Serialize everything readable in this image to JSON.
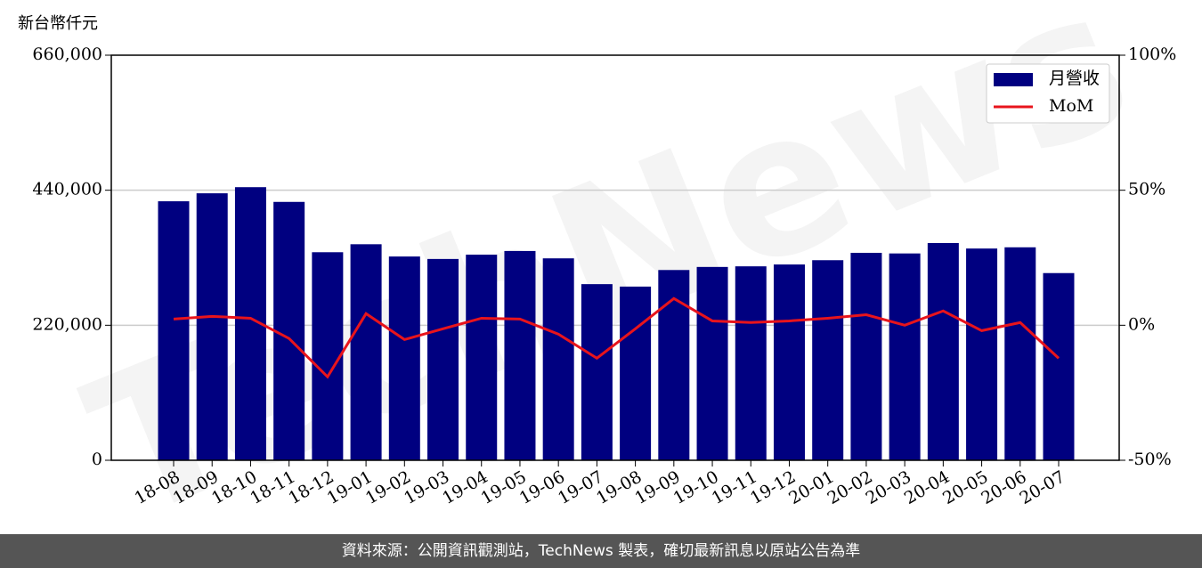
{
  "chart_data": {
    "type": "bar",
    "y_axis_title": "新台幣仟元",
    "watermark": "TechNews",
    "footer": "資料來源：公開資訊觀測站，TechNews 製表，確切最新訊息以原站公告為準",
    "categories": [
      "18-08",
      "18-09",
      "18-10",
      "18-11",
      "18-12",
      "19-01",
      "19-02",
      "19-03",
      "19-04",
      "19-05",
      "19-06",
      "19-07",
      "19-08",
      "19-09",
      "19-10",
      "19-11",
      "19-12",
      "20-01",
      "20-02",
      "20-03",
      "20-04",
      "20-05",
      "20-06",
      "20-07"
    ],
    "series": [
      {
        "name": "月營收",
        "color": "#000080",
        "type": "bar",
        "values": [
          422000,
          435000,
          445000,
          421000,
          339000,
          352000,
          332000,
          328000,
          335000,
          341000,
          329000,
          287000,
          283000,
          310000,
          315000,
          316000,
          319000,
          326000,
          338000,
          337000,
          354000,
          345000,
          347000,
          305000
        ]
      },
      {
        "name": "MoM",
        "color": "#e8141c",
        "type": "line",
        "axis": "y2",
        "values": [
          2.3,
          3.3,
          2.6,
          -4.9,
          -19.1,
          4.3,
          -5.3,
          -1.3,
          2.6,
          2.3,
          -3.3,
          -12.2,
          -1.3,
          9.9,
          1.6,
          1.0,
          1.6,
          2.6,
          3.9,
          0,
          5.3,
          -2.0,
          1.0,
          -12.2
        ]
      }
    ],
    "ylim": [
      0,
      660000
    ],
    "yticks": [
      0,
      {
        "value": 220000,
        "label": "220,000"
      },
      {
        "value": 440000,
        "label": "440,000"
      },
      {
        "value": 660000,
        "label": "660,000"
      }
    ],
    "y2lim": [
      -50,
      100
    ],
    "y2ticks": [
      {
        "value": -50,
        "label": "-50%"
      },
      {
        "value": 0,
        "label": "0%"
      },
      {
        "value": 50,
        "label": "50%"
      },
      {
        "value": 100,
        "label": "100%"
      }
    ],
    "grid": true,
    "legend": "upper right"
  }
}
